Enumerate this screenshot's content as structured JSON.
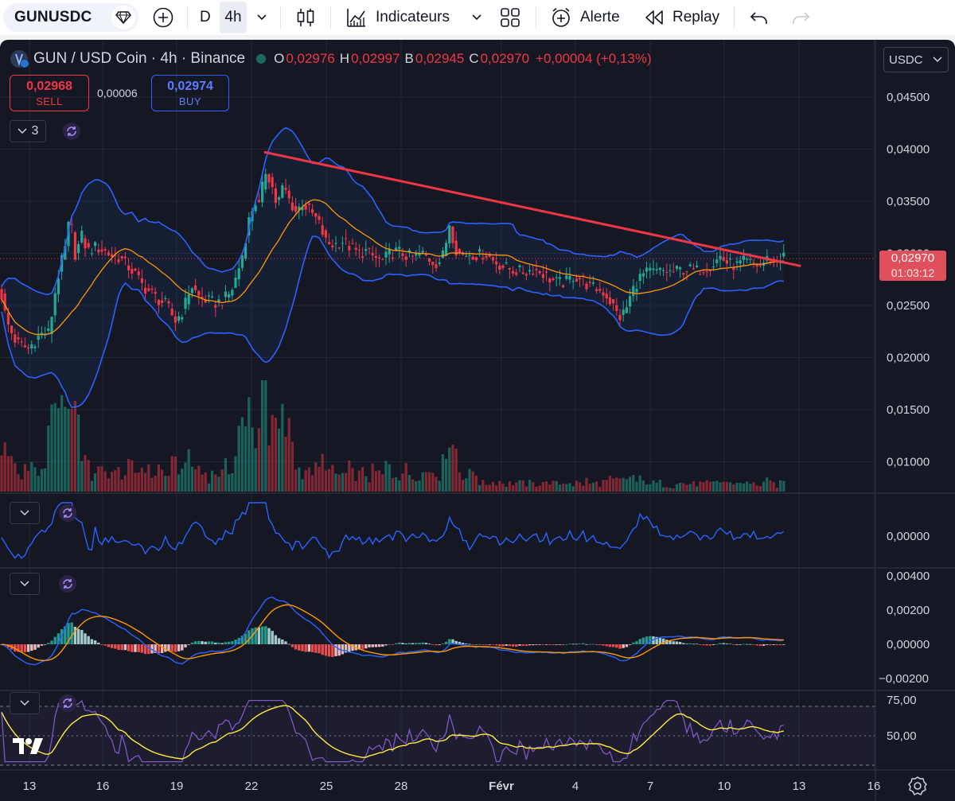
{
  "toolbar": {
    "symbol": "GUNUSDC",
    "interval_d": "D",
    "interval_4h": "4h",
    "indicators_label": "Indicateurs",
    "alert_label": "Alerte",
    "replay_label": "Replay"
  },
  "legend": {
    "title": "GUN / USD Coin · 4h · Binance",
    "open_key": "O",
    "open": "0,02976",
    "high_key": "H",
    "high": "0,02997",
    "low_key": "B",
    "low": "0,02945",
    "close_key": "C",
    "close": "0,02970",
    "change": "+0,00004 (+0,13%)"
  },
  "trade": {
    "sell_price": "0,02968",
    "sell_label": "SELL",
    "spread": "0,00006",
    "buy_price": "0,02974",
    "buy_label": "BUY"
  },
  "indicator_count": "3",
  "currency": "USDC",
  "last_price": {
    "price": "0,02970",
    "countdown": "01:03:12"
  },
  "price_axis": [
    "0,04500",
    "0,04000",
    "0,03500",
    "0,03000",
    "0,02500",
    "0,02000",
    "0,01500",
    "0,01000"
  ],
  "osc1_axis": [
    "0,00000"
  ],
  "macd_axis": [
    "0,00400",
    "0,00200",
    "0,00000",
    "−0,00200"
  ],
  "rsi_axis": [
    "75,00",
    "50,00"
  ],
  "dates": [
    "13",
    "16",
    "19",
    "22",
    "25",
    "28",
    "Févr",
    "4",
    "7",
    "10",
    "13",
    "16"
  ],
  "colors": {
    "bg": "#151823",
    "up": "#22ab94",
    "down": "#f23645",
    "bollinger": "#2962ff",
    "ma": "#ff9800",
    "trendline": "#f23645",
    "rsi": "#7e57c2",
    "rsi_ma": "#ffeb3b"
  },
  "chart_data": {
    "type": "candlestick",
    "price_ylim": [
      0.0085,
      0.049
    ],
    "price_path": [
      [
        0,
        0.0268
      ],
      [
        8,
        0.0235
      ],
      [
        20,
        0.0215
      ],
      [
        35,
        0.0208
      ],
      [
        50,
        0.0222
      ],
      [
        62,
        0.0224
      ],
      [
        68,
        0.0258
      ],
      [
        75,
        0.0285
      ],
      [
        82,
        0.0305
      ],
      [
        88,
        0.0336
      ],
      [
        95,
        0.0296
      ],
      [
        102,
        0.0318
      ],
      [
        110,
        0.0302
      ],
      [
        120,
        0.0306
      ],
      [
        130,
        0.0303
      ],
      [
        140,
        0.0298
      ],
      [
        150,
        0.0296
      ],
      [
        160,
        0.0288
      ],
      [
        170,
        0.028
      ],
      [
        180,
        0.0268
      ],
      [
        190,
        0.0262
      ],
      [
        200,
        0.0255
      ],
      [
        210,
        0.025
      ],
      [
        220,
        0.0235
      ],
      [
        230,
        0.0245
      ],
      [
        240,
        0.027
      ],
      [
        250,
        0.0258
      ],
      [
        260,
        0.0255
      ],
      [
        270,
        0.0252
      ],
      [
        280,
        0.0255
      ],
      [
        290,
        0.0262
      ],
      [
        298,
        0.028
      ],
      [
        305,
        0.03
      ],
      [
        312,
        0.033
      ],
      [
        320,
        0.035
      ],
      [
        326,
        0.0345
      ],
      [
        333,
        0.038
      ],
      [
        340,
        0.037
      ],
      [
        348,
        0.0345
      ],
      [
        356,
        0.0365
      ],
      [
        364,
        0.035
      ],
      [
        372,
        0.034
      ],
      [
        380,
        0.0348
      ],
      [
        390,
        0.034
      ],
      [
        400,
        0.033
      ],
      [
        410,
        0.031
      ],
      [
        420,
        0.0308
      ],
      [
        430,
        0.0312
      ],
      [
        440,
        0.0306
      ],
      [
        450,
        0.03
      ],
      [
        460,
        0.0302
      ],
      [
        470,
        0.0296
      ],
      [
        480,
        0.0292
      ],
      [
        490,
        0.03
      ],
      [
        500,
        0.0302
      ],
      [
        510,
        0.0298
      ],
      [
        520,
        0.0296
      ],
      [
        530,
        0.03
      ],
      [
        540,
        0.0294
      ],
      [
        550,
        0.029
      ],
      [
        558,
        0.03
      ],
      [
        565,
        0.033
      ],
      [
        572,
        0.0305
      ],
      [
        580,
        0.0298
      ],
      [
        590,
        0.03
      ],
      [
        600,
        0.0298
      ],
      [
        610,
        0.03
      ],
      [
        620,
        0.0293
      ],
      [
        630,
        0.0288
      ],
      [
        640,
        0.0285
      ],
      [
        650,
        0.0283
      ],
      [
        660,
        0.0282
      ],
      [
        670,
        0.0285
      ],
      [
        680,
        0.0282
      ],
      [
        690,
        0.0276
      ],
      [
        700,
        0.0272
      ],
      [
        710,
        0.0272
      ],
      [
        720,
        0.0278
      ],
      [
        730,
        0.0276
      ],
      [
        740,
        0.0268
      ],
      [
        750,
        0.0266
      ],
      [
        760,
        0.0262
      ],
      [
        770,
        0.025
      ],
      [
        778,
        0.0238
      ],
      [
        786,
        0.0245
      ],
      [
        795,
        0.0265
      ],
      [
        805,
        0.0278
      ],
      [
        815,
        0.0282
      ],
      [
        825,
        0.0282
      ],
      [
        835,
        0.0283
      ],
      [
        845,
        0.0282
      ],
      [
        855,
        0.0284
      ],
      [
        865,
        0.0285
      ],
      [
        875,
        0.0283
      ],
      [
        885,
        0.0286
      ],
      [
        895,
        0.0289
      ],
      [
        905,
        0.0297
      ],
      [
        915,
        0.029
      ],
      [
        925,
        0.0288
      ],
      [
        935,
        0.0292
      ],
      [
        945,
        0.029
      ],
      [
        955,
        0.0288
      ],
      [
        965,
        0.0295
      ],
      [
        975,
        0.0292
      ],
      [
        985,
        0.0297
      ]
    ],
    "trendline": [
      [
        333,
        0.0397
      ],
      [
        1005,
        0.0288
      ]
    ]
  }
}
